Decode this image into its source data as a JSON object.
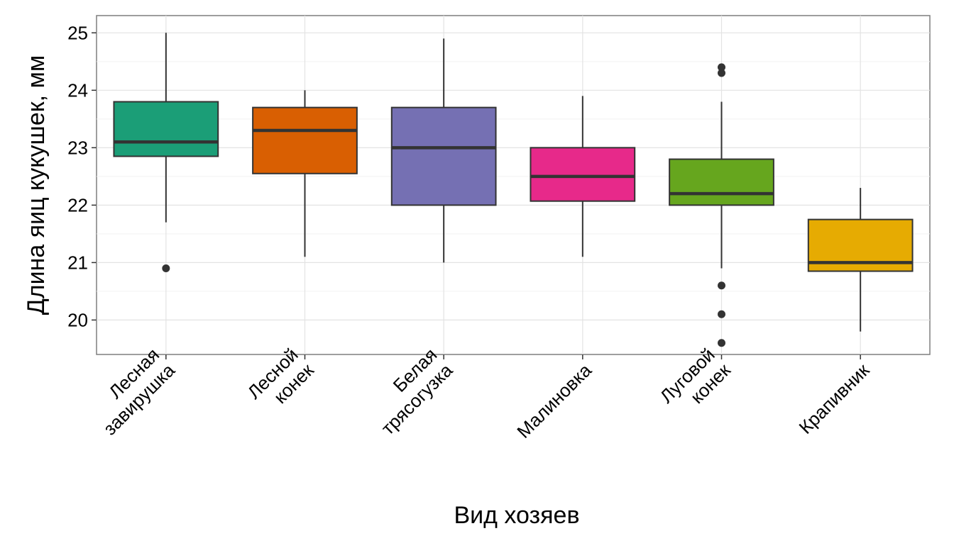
{
  "chart_data": {
    "type": "boxplot",
    "title": "",
    "xlabel": "Вид хозяев",
    "ylabel": "Длина яиц кукушек, мм",
    "ylim": [
      19.4,
      25.3
    ],
    "y_ticks": [
      20,
      21,
      22,
      23,
      24,
      25
    ],
    "y_tick_labels": [
      "20",
      "21",
      "22",
      "23",
      "24",
      "25"
    ],
    "grid": true,
    "legend": "none",
    "categories": [
      [
        "Лесная",
        "завирушка"
      ],
      [
        "Лесной",
        "конек"
      ],
      [
        "Белая",
        "трясогузка"
      ],
      [
        "Малиновка"
      ],
      [
        "Луговой",
        "конек"
      ],
      [
        "Крапивник"
      ]
    ],
    "boxes": [
      {
        "whisker_low": 21.7,
        "q1": 22.85,
        "median": 23.1,
        "q3": 23.8,
        "whisker_high": 25.0,
        "outliers": [
          20.9
        ],
        "color": "#1B9E77"
      },
      {
        "whisker_low": 21.1,
        "q1": 22.55,
        "median": 23.3,
        "q3": 23.7,
        "whisker_high": 24.0,
        "outliers": [],
        "color": "#D95F02"
      },
      {
        "whisker_low": 21.0,
        "q1": 22.0,
        "median": 23.0,
        "q3": 23.7,
        "whisker_high": 24.9,
        "outliers": [],
        "color": "#7570B3"
      },
      {
        "whisker_low": 21.1,
        "q1": 22.07,
        "median": 22.5,
        "q3": 23.0,
        "whisker_high": 23.9,
        "outliers": [],
        "color": "#E7298A"
      },
      {
        "whisker_low": 20.9,
        "q1": 22.0,
        "median": 22.2,
        "q3": 22.8,
        "whisker_high": 23.8,
        "outliers": [
          24.4,
          24.3,
          20.6,
          20.1,
          19.6
        ],
        "color": "#66A61E"
      },
      {
        "whisker_low": 19.8,
        "q1": 20.85,
        "median": 21.0,
        "q3": 21.75,
        "whisker_high": 22.3,
        "outliers": [],
        "color": "#E6AB02"
      }
    ]
  }
}
